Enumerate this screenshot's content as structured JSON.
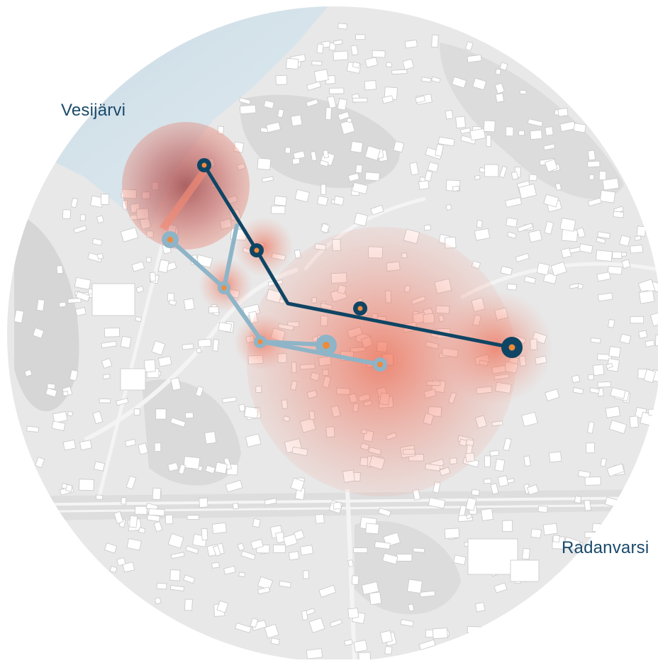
{
  "labels": {
    "lake": "Vesijärvi",
    "district": "Radanvarsi"
  },
  "colors": {
    "background": "#ffffff",
    "map_base": "#e9e9e9",
    "map_shade": "#d4d4d4",
    "buildings": "#ffffff",
    "water": "#d3e0e8",
    "heat": "#ef5a3c",
    "route_primary": "#0f4564",
    "route_secondary": "#8eb4c7",
    "stop_inner": "#f08a3c",
    "label_text": "#1a4a6b"
  },
  "map": {
    "shape": "circle",
    "heat_zones": [
      {
        "id": "harbour",
        "intensity": "high"
      },
      {
        "id": "center",
        "intensity": "high"
      },
      {
        "id": "east",
        "intensity": "medium"
      },
      {
        "id": "mid-north",
        "intensity": "low"
      },
      {
        "id": "mid-west",
        "intensity": "low"
      }
    ],
    "routes": [
      {
        "id": "dark-route",
        "color_key": "route_primary"
      },
      {
        "id": "light-route",
        "color_key": "route_secondary"
      }
    ]
  }
}
